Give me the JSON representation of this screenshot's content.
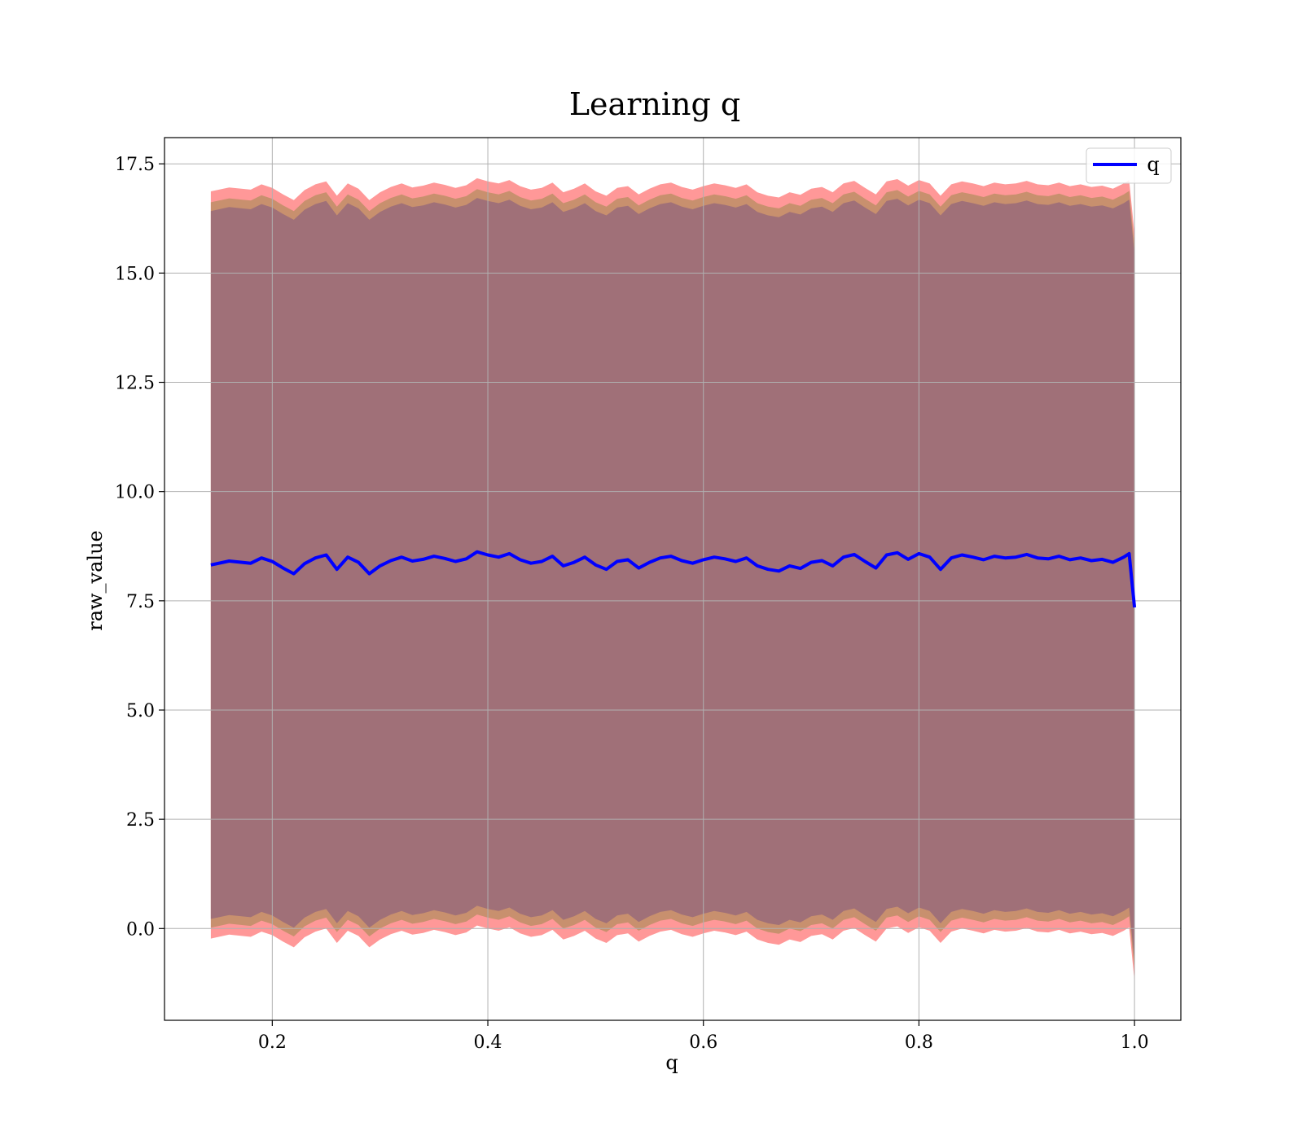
{
  "chart_data": {
    "type": "area",
    "title": "Learning q",
    "xlabel": "q",
    "ylabel": "raw_value",
    "xlim": [
      0.1,
      1.043
    ],
    "ylim": [
      -2.1,
      18.1
    ],
    "xticks": [
      0.2,
      0.4,
      0.6,
      0.8,
      1.0
    ],
    "xtick_labels": [
      "0.2",
      "0.4",
      "0.6",
      "0.8",
      "1.0"
    ],
    "yticks": [
      0.0,
      2.5,
      5.0,
      7.5,
      10.0,
      12.5,
      15.0,
      17.5
    ],
    "ytick_labels": [
      "0.0",
      "2.5",
      "5.0",
      "7.5",
      "10.0",
      "12.5",
      "15.0",
      "17.5"
    ],
    "grid": true,
    "legend": {
      "position": "top-right",
      "entries": [
        {
          "label": "q",
          "color": "#0000ff"
        }
      ]
    },
    "colors": {
      "line": "#0000ff",
      "band_inner": "#a07078",
      "band_mid": "#c8906e",
      "band_outer": "#ff9898",
      "grid": "#b0b0b0"
    },
    "band_offsets": {
      "inner": 8.1,
      "mid": 8.3,
      "outer": 8.55
    },
    "x": [
      0.143,
      0.16,
      0.18,
      0.19,
      0.2,
      0.21,
      0.22,
      0.23,
      0.24,
      0.25,
      0.26,
      0.27,
      0.28,
      0.29,
      0.3,
      0.31,
      0.32,
      0.33,
      0.34,
      0.35,
      0.36,
      0.37,
      0.38,
      0.39,
      0.4,
      0.41,
      0.42,
      0.43,
      0.44,
      0.45,
      0.46,
      0.47,
      0.48,
      0.49,
      0.5,
      0.51,
      0.52,
      0.53,
      0.54,
      0.55,
      0.56,
      0.57,
      0.58,
      0.59,
      0.6,
      0.61,
      0.62,
      0.63,
      0.64,
      0.65,
      0.66,
      0.67,
      0.68,
      0.69,
      0.7,
      0.71,
      0.72,
      0.73,
      0.74,
      0.75,
      0.76,
      0.77,
      0.78,
      0.79,
      0.8,
      0.81,
      0.82,
      0.83,
      0.84,
      0.85,
      0.86,
      0.87,
      0.88,
      0.89,
      0.9,
      0.91,
      0.92,
      0.93,
      0.94,
      0.95,
      0.96,
      0.97,
      0.98,
      0.99,
      0.995,
      1.0
    ],
    "series": [
      {
        "name": "q",
        "values": [
          8.32,
          8.41,
          8.36,
          8.48,
          8.4,
          8.25,
          8.12,
          8.35,
          8.48,
          8.55,
          8.22,
          8.5,
          8.38,
          8.12,
          8.3,
          8.42,
          8.5,
          8.41,
          8.45,
          8.52,
          8.47,
          8.4,
          8.46,
          8.62,
          8.55,
          8.5,
          8.58,
          8.44,
          8.36,
          8.4,
          8.52,
          8.3,
          8.38,
          8.5,
          8.32,
          8.22,
          8.4,
          8.44,
          8.25,
          8.38,
          8.48,
          8.52,
          8.42,
          8.36,
          8.44,
          8.5,
          8.46,
          8.4,
          8.48,
          8.3,
          8.22,
          8.18,
          8.3,
          8.24,
          8.38,
          8.42,
          8.3,
          8.5,
          8.56,
          8.4,
          8.25,
          8.55,
          8.6,
          8.45,
          8.58,
          8.5,
          8.22,
          8.48,
          8.55,
          8.5,
          8.44,
          8.52,
          8.48,
          8.5,
          8.56,
          8.48,
          8.46,
          8.52,
          8.44,
          8.48,
          8.42,
          8.45,
          8.38,
          8.5,
          8.58,
          7.35
        ]
      }
    ]
  }
}
